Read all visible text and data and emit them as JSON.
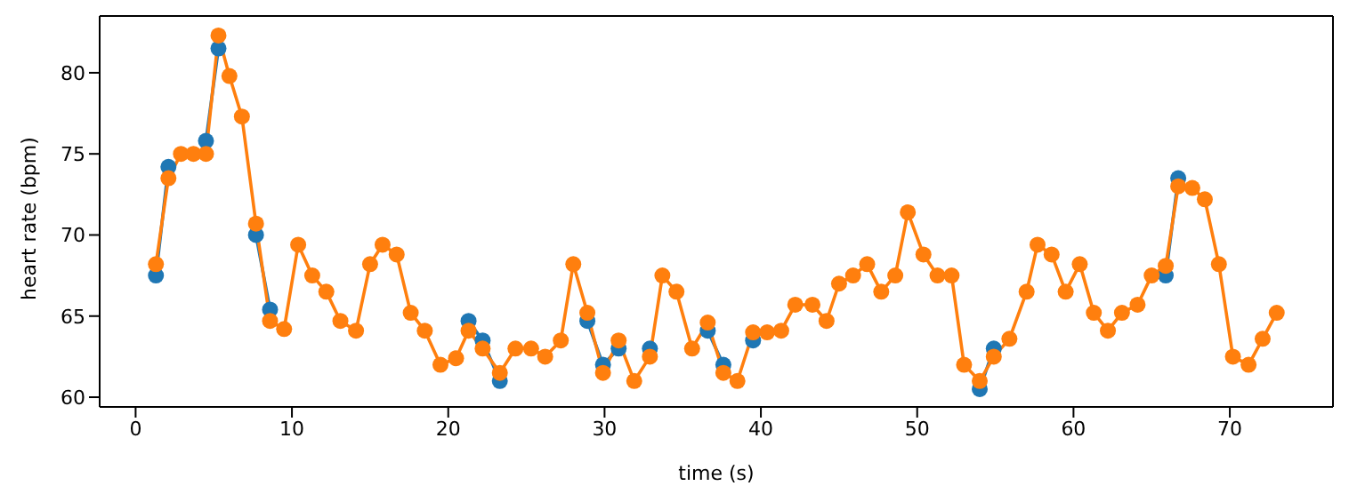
{
  "chart_data": {
    "type": "line",
    "xlabel": "time (s)",
    "ylabel": "heart rate (bpm)",
    "x": [
      1.3,
      2.1,
      2.9,
      3.7,
      4.5,
      5.3,
      6.0,
      6.8,
      7.7,
      8.6,
      9.5,
      10.4,
      11.3,
      12.2,
      13.1,
      14.1,
      15.0,
      15.8,
      16.7,
      17.6,
      18.5,
      19.5,
      20.5,
      21.3,
      22.2,
      23.3,
      24.3,
      25.3,
      26.2,
      27.2,
      28.0,
      28.9,
      29.9,
      30.9,
      31.9,
      32.9,
      33.7,
      34.6,
      35.6,
      36.6,
      37.6,
      38.5,
      39.5,
      40.4,
      41.3,
      42.2,
      43.3,
      44.2,
      45.0,
      45.9,
      46.8,
      47.7,
      48.6,
      49.4,
      50.4,
      51.3,
      52.2,
      53.0,
      54.0,
      54.9,
      55.9,
      57.0,
      57.7,
      58.6,
      59.5,
      60.4,
      61.3,
      62.2,
      63.1,
      64.1,
      65.0,
      65.9,
      66.7,
      67.6,
      68.4,
      69.3,
      70.2,
      71.2,
      72.1,
      73.0
    ],
    "series": [
      {
        "color": "#1f77b4",
        "values": [
          67.5,
          74.2,
          null,
          null,
          75.8,
          81.5,
          null,
          null,
          70,
          65.4,
          null,
          null,
          null,
          null,
          null,
          null,
          null,
          null,
          null,
          null,
          null,
          null,
          null,
          64.7,
          63.5,
          61,
          null,
          null,
          null,
          null,
          null,
          64.7,
          62,
          63,
          null,
          63,
          null,
          null,
          null,
          64.1,
          62,
          null,
          63.5,
          null,
          null,
          null,
          null,
          null,
          null,
          null,
          null,
          null,
          null,
          null,
          null,
          null,
          null,
          null,
          60.5,
          63,
          null,
          null,
          null,
          null,
          null,
          null,
          null,
          null,
          null,
          null,
          null,
          67.5,
          73.5,
          null,
          null,
          null,
          null,
          null,
          null,
          null
        ]
      },
      {
        "color": "#ff7f0e",
        "values": [
          68.2,
          73.5,
          75,
          75,
          75,
          82.3,
          79.8,
          77.3,
          70.7,
          64.7,
          64.2,
          69.4,
          67.5,
          66.5,
          64.7,
          64.1,
          68.2,
          69.4,
          68.8,
          65.2,
          64.1,
          62,
          62.4,
          64.1,
          63,
          61.5,
          63,
          63,
          62.5,
          63.5,
          68.2,
          65.2,
          61.5,
          63.5,
          61,
          62.5,
          67.5,
          66.5,
          63,
          64.6,
          61.5,
          61,
          64,
          64,
          64.1,
          65.7,
          65.7,
          64.7,
          67,
          67.5,
          68.2,
          66.5,
          67.5,
          71.4,
          68.8,
          67.5,
          67.5,
          62,
          61,
          62.5,
          63.6,
          66.5,
          69.4,
          68.8,
          66.5,
          68.2,
          65.2,
          64.1,
          65.2,
          65.7,
          67.5,
          68.1,
          73,
          72.9,
          72.2,
          68.2,
          62.5,
          62,
          63.6,
          65.2
        ]
      }
    ],
    "xlim": [
      -2.3,
      76.6
    ],
    "xticks": [
      0,
      10,
      20,
      30,
      40,
      50,
      60,
      70
    ],
    "ylim": [
      59.4,
      83.5
    ],
    "yticks": [
      60,
      65,
      70,
      75,
      80
    ],
    "marker": "circle",
    "line_style": "solid"
  }
}
